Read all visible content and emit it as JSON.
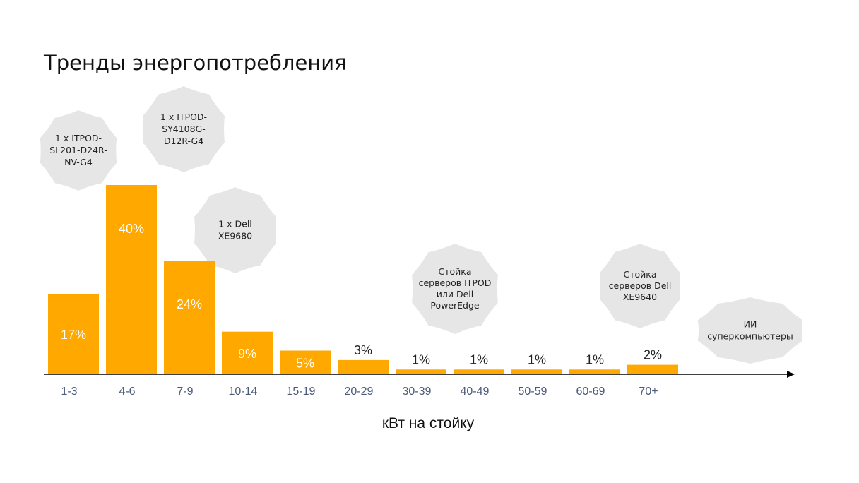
{
  "chart_data": {
    "type": "bar",
    "title": "Тренды энергопотребления",
    "xlabel": "кВт на стойку",
    "ylabel": "",
    "categories": [
      "1-3",
      "4-6",
      "7-9",
      "10-14",
      "15-19",
      "20-29",
      "30-39",
      "40-49",
      "50-59",
      "60-69",
      "70+"
    ],
    "values": [
      17,
      40,
      24,
      9,
      5,
      3,
      1,
      1,
      1,
      1,
      2
    ],
    "value_labels": [
      "17%",
      "40%",
      "24%",
      "9%",
      "5%",
      "3%",
      "1%",
      "1%",
      "1%",
      "1%",
      "2%"
    ],
    "ylim": [
      0,
      40
    ],
    "grid": false,
    "bar_color": "#FFA800",
    "annotations": [
      {
        "category": "1-3",
        "lines": [
          "1 x ITPOD-",
          "SL201-D24R-",
          "NV-G4"
        ]
      },
      {
        "category": "4-6",
        "lines": [
          "1 x ITPOD-",
          "SY4108G-",
          "D12R-G4"
        ]
      },
      {
        "category": "7-9",
        "lines": [
          "1 x Dell",
          "XE9680"
        ]
      },
      {
        "category": "30-39",
        "lines": [
          "Стойка",
          "серверов ITPOD",
          "или Dell",
          "PowerEdge"
        ]
      },
      {
        "category": "60-69",
        "lines": [
          "Стойка",
          "серверов Dell",
          "XE9640"
        ]
      },
      {
        "category": "beyond 70+",
        "lines": [
          "ИИ",
          "суперкомпьютеры"
        ]
      }
    ],
    "annotation_color": "#E6E6E6"
  }
}
